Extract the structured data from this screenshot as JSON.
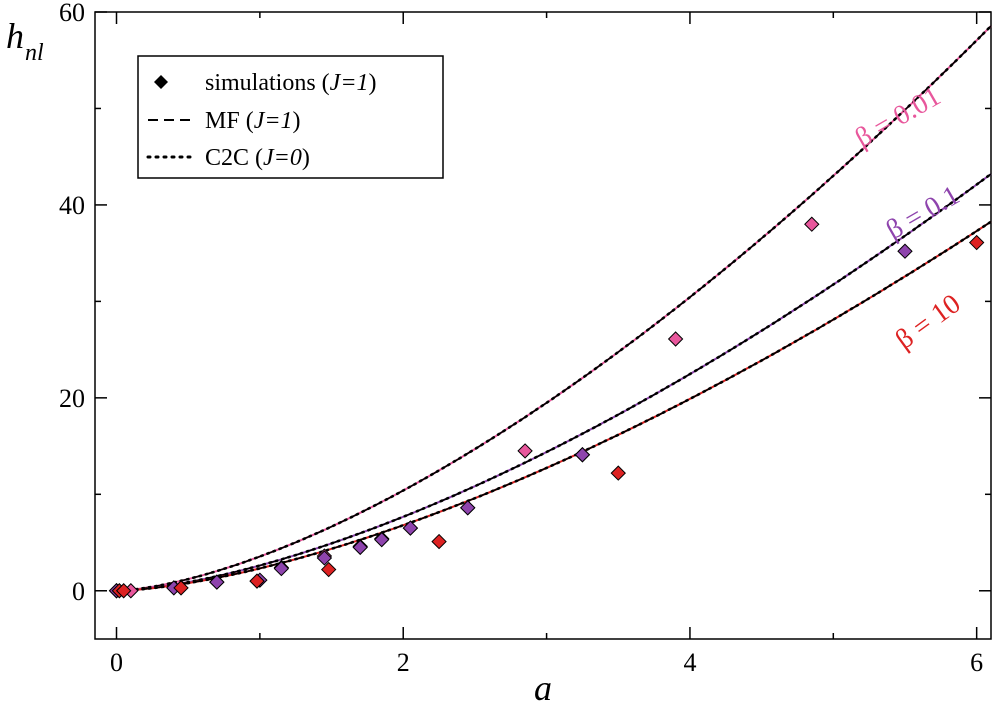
{
  "chart_data": {
    "type": "scatter",
    "xlabel": "a",
    "ylabel_main": "h",
    "ylabel_sub": "nl",
    "xlim": [
      -0.15,
      6.1
    ],
    "ylim": [
      -5,
      60
    ],
    "xticks": [
      0,
      2,
      4,
      6
    ],
    "yticks": [
      0,
      20,
      40,
      60
    ],
    "xtick_labels": [
      "0",
      "2",
      "4",
      "6"
    ],
    "ytick_labels": [
      "0",
      "20",
      "40",
      "60"
    ],
    "legend": {
      "position": "top-left",
      "entries": [
        {
          "marker": "diamond",
          "label": "simulations (",
          "italic": "J=1",
          "close": ")"
        },
        {
          "marker": "dashed",
          "label": "MF (",
          "italic": "J=1",
          "close": ")"
        },
        {
          "marker": "dotted",
          "label": "C2C (",
          "italic": "J=0",
          "close": ")"
        }
      ]
    },
    "series": [
      {
        "name": "β = 0.01",
        "color": "#e8579c",
        "curve_coef": 3.55,
        "curve_exp": 1.55,
        "x": [
          0.0,
          0.1,
          0.7,
          1.15,
          1.45,
          1.7,
          1.85,
          2.05,
          2.45,
          2.85,
          3.25,
          3.9,
          4.85
        ],
        "y": [
          0.0,
          0.0,
          0.9,
          2.4,
          3.6,
          4.6,
          5.4,
          6.5,
          8.6,
          14.5,
          14.1,
          26.1,
          38.0
        ]
      },
      {
        "name": "β = 0.1",
        "color": "#8e44ad",
        "curve_coef": 2.62,
        "curve_exp": 1.55,
        "x": [
          0.0,
          0.4,
          0.7,
          1.0,
          1.15,
          1.45,
          1.7,
          1.85,
          2.05,
          2.45,
          3.25,
          5.5
        ],
        "y": [
          0.0,
          0.3,
          0.9,
          1.1,
          2.3,
          3.4,
          4.5,
          5.3,
          6.5,
          8.6,
          14.1,
          35.2
        ]
      },
      {
        "name": "β = 10",
        "color": "#dd2222",
        "curve_coef": 2.32,
        "curve_exp": 1.55,
        "x": [
          0.02,
          0.05,
          0.45,
          0.98,
          1.48,
          2.25,
          3.5,
          6.0
        ],
        "y": [
          0.0,
          0.0,
          0.3,
          1.0,
          2.2,
          5.1,
          12.2,
          36.1
        ]
      }
    ],
    "annotations": [
      "β = 0.01",
      "β = 0.1",
      "β = 10"
    ]
  }
}
